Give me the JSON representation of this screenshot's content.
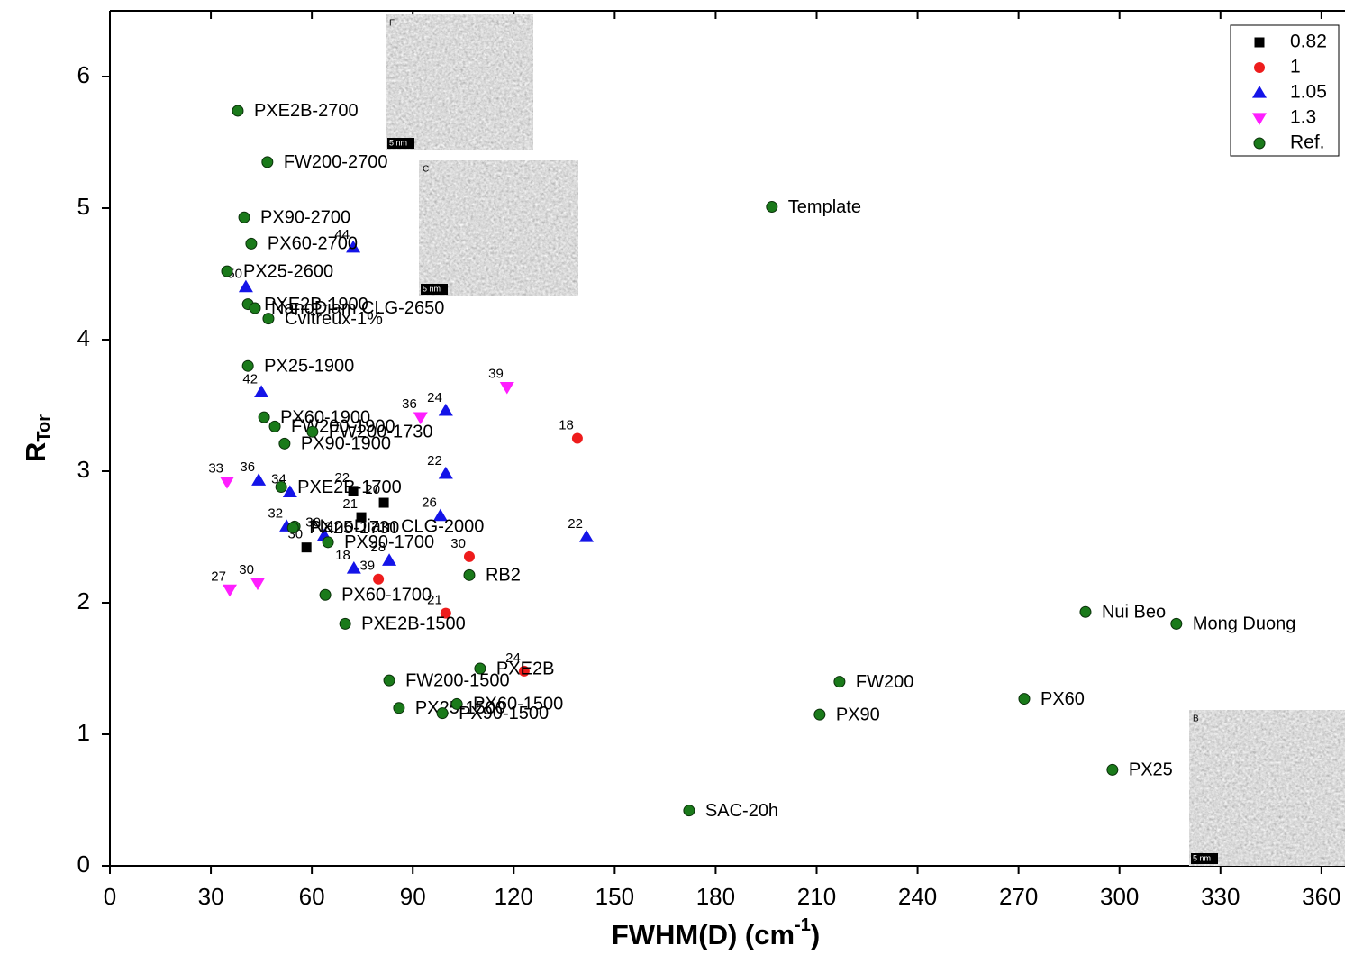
{
  "chart_data": {
    "type": "scatter",
    "x_label": {
      "text": "FWHM(D) (cm",
      "sup": "-1",
      "end": ")"
    },
    "y_label": {
      "text": "R",
      "sub": "Tor"
    },
    "xlim": [
      0,
      367
    ],
    "ylim": [
      0,
      6.5
    ],
    "xticks": [
      0,
      30,
      60,
      90,
      120,
      150,
      180,
      210,
      240,
      270,
      300,
      330,
      360
    ],
    "yticks": [
      0,
      1,
      2,
      3,
      4,
      5,
      6
    ],
    "legend": "top-right",
    "series": [
      {
        "name": "0.82",
        "marker": "square",
        "color": "#000000",
        "x": [
          72.3,
          81.4,
          74.7,
          58.4
        ],
        "values": [
          2.85,
          2.76,
          2.65,
          2.42
        ],
        "labels": [
          "22",
          "20",
          "21",
          "30"
        ]
      },
      {
        "name": "1",
        "marker": "circle",
        "color": "#ee1c1c",
        "x": [
          138.9,
          106.8,
          79.8,
          99.8,
          123.1
        ],
        "values": [
          3.25,
          2.35,
          2.18,
          1.92,
          1.48
        ],
        "labels": [
          "18",
          "30",
          "39",
          "21",
          "24"
        ]
      },
      {
        "name": "1.05",
        "marker": "triangle-up",
        "color": "#1414e8",
        "x": [
          72.3,
          40.4,
          45.0,
          99.8,
          99.8,
          44.2,
          53.5,
          98.2,
          141.6,
          52.5,
          63.7,
          83.0,
          72.5
        ],
        "values": [
          4.7,
          4.4,
          3.6,
          3.46,
          2.98,
          2.93,
          2.84,
          2.66,
          2.5,
          2.58,
          2.51,
          2.32,
          2.26
        ],
        "labels": [
          "44",
          "50",
          "42",
          "24",
          "22",
          "36",
          "34",
          "26",
          "22",
          "32",
          "30",
          "28",
          "18"
        ]
      },
      {
        "name": "1.3",
        "marker": "triangle-down",
        "color": "#ff1eff",
        "x": [
          118.0,
          92.3,
          34.8,
          35.6,
          43.9
        ],
        "values": [
          3.64,
          3.41,
          2.92,
          2.1,
          2.15
        ],
        "labels": [
          "39",
          "36",
          "33",
          "27",
          "30"
        ]
      },
      {
        "name": "Ref.",
        "marker": "circle",
        "color": "#1a7a1a",
        "x": [
          38.0,
          46.8,
          39.9,
          42.0,
          34.8,
          41.0,
          43.1,
          47.1,
          41.0,
          45.8,
          49.0,
          60.2,
          51.9,
          50.9,
          54.9,
          54.4,
          64.8,
          106.8,
          64.0,
          69.9,
          110.0,
          83.0,
          85.9,
          103.1,
          98.8,
          196.7,
          289.9,
          316.9,
          216.8,
          271.7,
          210.9,
          297.9,
          172.1
        ],
        "values": [
          5.74,
          5.35,
          4.93,
          4.73,
          4.52,
          4.27,
          4.24,
          4.16,
          3.8,
          3.41,
          3.34,
          3.3,
          3.21,
          2.88,
          2.58,
          2.57,
          2.46,
          2.21,
          2.06,
          1.84,
          1.5,
          1.41,
          1.2,
          1.23,
          1.16,
          5.01,
          1.93,
          1.84,
          1.4,
          1.27,
          1.15,
          0.73,
          0.42
        ],
        "labels": [
          "PXE2B-2700",
          "FW200-2700",
          "PX90-2700",
          "PX60-2700",
          "PX25-2600",
          "PXE2B-1900",
          "NanoDiam CLG-2650",
          "Cvitreux-1%",
          "PX25-1900",
          "PX60-1900",
          "FW200-1900",
          "FW200-1730",
          "PX90-1900",
          "PXE2B-1700",
          "NanoDiam CLG-2000",
          "PX25-1730",
          "PX90-1700",
          "RB2",
          "PX60-1700",
          "PXE2B-1500",
          "PXE2B",
          "FW200-1500",
          "PX25-1500",
          "PX60-1500",
          "PX90-1500",
          "Template",
          "Nui Beo",
          "Mong Duong",
          "FW200",
          "PX60",
          "PX90",
          "PX25",
          "SAC-20h"
        ]
      }
    ],
    "insets": [
      {
        "letter": "F",
        "scale": "5 nm"
      },
      {
        "letter": "C",
        "scale": "5 nm"
      },
      {
        "letter": "B",
        "scale": "5 nm"
      }
    ]
  }
}
